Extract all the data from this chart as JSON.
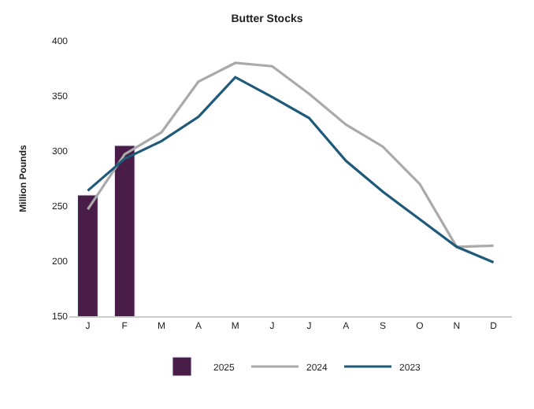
{
  "chart_data": {
    "type": "bar",
    "title": "Butter Stocks",
    "ylabel": "Million Pounds",
    "categories": [
      "J",
      "F",
      "M",
      "A",
      "M",
      "J",
      "J",
      "A",
      "S",
      "O",
      "N",
      "D"
    ],
    "ylim": [
      150,
      400
    ],
    "yticks": [
      150,
      200,
      250,
      300,
      350,
      400
    ],
    "grid": false,
    "legend": "bottom",
    "series": [
      {
        "name": "2025",
        "color": "#4a1c48",
        "values": [
          260,
          305,
          null,
          null,
          null,
          null,
          null,
          null,
          null,
          null,
          null,
          null
        ]
      },
      {
        "name": "2024",
        "type": "line",
        "color": "#aaaaaa",
        "values": [
          247,
          297,
          317,
          363,
          380,
          377,
          352,
          324,
          304,
          270,
          213,
          214
        ]
      },
      {
        "name": "2023",
        "type": "line",
        "color": "#1f5a7a",
        "values": [
          264,
          293,
          309,
          331,
          367,
          349,
          330,
          291,
          263,
          238,
          213,
          199
        ]
      }
    ]
  }
}
